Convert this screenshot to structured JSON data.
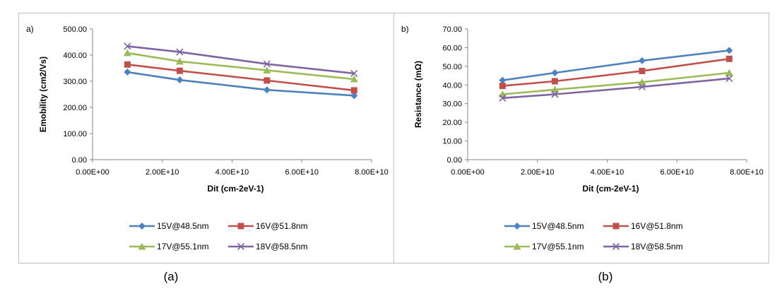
{
  "chart_data": [
    {
      "type": "line",
      "panel_label": "a)",
      "caption": "(a)",
      "xlabel": "Dit (cm-2eV-1)",
      "ylabel": "Emobility (cm2/Vs)",
      "xlim": [
        0,
        80000000000
      ],
      "ylim": [
        0,
        500
      ],
      "x_ticks": [
        "0.00E+00",
        "2.00E+10",
        "4.00E+10",
        "6.00E+10",
        "8.00E+10"
      ],
      "y_ticks": [
        "0.00",
        "100.00",
        "200.00",
        "300.00",
        "400.00",
        "500.00"
      ],
      "x": [
        10000000000,
        25000000000,
        50000000000,
        75000000000
      ],
      "series": [
        {
          "name": "15V@48.5nm",
          "color": "#4f81bd",
          "marker": "diamond",
          "values": [
            335,
            305,
            267,
            245
          ]
        },
        {
          "name": "16V@51.8nm",
          "color": "#c0504d",
          "marker": "square",
          "values": [
            364,
            340,
            303,
            265
          ]
        },
        {
          "name": "17V@55.1nm",
          "color": "#9bbb59",
          "marker": "triangle",
          "values": [
            408,
            376,
            342,
            308
          ]
        },
        {
          "name": "18V@58.5nm",
          "color": "#8064a2",
          "marker": "x",
          "values": [
            434,
            412,
            366,
            330
          ]
        }
      ],
      "legend_position": "bottom"
    },
    {
      "type": "line",
      "panel_label": "b)",
      "caption": "(b)",
      "xlabel": "Dit (cm-2eV-1)",
      "ylabel": "Resistance (mΩ)",
      "xlim": [
        0,
        80000000000
      ],
      "ylim": [
        0,
        70
      ],
      "x_ticks": [
        "0.00E+00",
        "2.00E+10",
        "4.00E+10",
        "6.00E+10",
        "8.00E+10"
      ],
      "y_ticks": [
        "0.00",
        "10.00",
        "20.00",
        "30.00",
        "40.00",
        "50.00",
        "60.00",
        "70.00"
      ],
      "x": [
        10000000000,
        25000000000,
        50000000000,
        75000000000
      ],
      "series": [
        {
          "name": "15V@48.5nm",
          "color": "#4f81bd",
          "marker": "diamond",
          "values": [
            42.5,
            46.5,
            53,
            58.5
          ]
        },
        {
          "name": "16V@51.8nm",
          "color": "#c0504d",
          "marker": "square",
          "values": [
            39.5,
            42,
            47.5,
            54
          ]
        },
        {
          "name": "17V@55.1nm",
          "color": "#9bbb59",
          "marker": "triangle",
          "values": [
            35,
            37.5,
            41.5,
            46.5
          ]
        },
        {
          "name": "18V@58.5nm",
          "color": "#8064a2",
          "marker": "x",
          "values": [
            33,
            35,
            39,
            43.5
          ]
        }
      ],
      "legend_position": "bottom"
    }
  ]
}
